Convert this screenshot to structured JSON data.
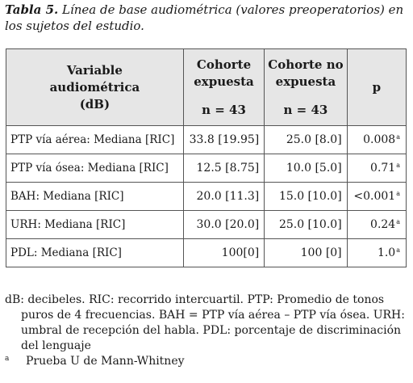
{
  "caption": {
    "label": "Tabla 5.",
    "text": "Línea de base audiométrica (valores preoperatorios) en los sujetos del estudio."
  },
  "table": {
    "headers": {
      "variable_line1": "Variable",
      "variable_line2": "audiométrica",
      "variable_line3": "(dB)",
      "cohort1_line1": "Cohorte",
      "cohort1_line2": "expuesta",
      "cohort1_n": "n = 43",
      "cohort2_line1": "Cohorte no",
      "cohort2_line2": "expuesta",
      "cohort2_n": "n = 43",
      "p": "p"
    },
    "rows": [
      {
        "variable": "PTP vía aérea: Mediana [RIC]",
        "exposed": "33.8 [19.95]",
        "unexposed": "25.0 [8.0]",
        "p": "0.008",
        "p_mark": "a"
      },
      {
        "variable": "PTP vía ósea: Mediana [RIC]",
        "exposed": "12.5 [8.75]",
        "unexposed": "10.0 [5.0]",
        "p": "0.71",
        "p_mark": "a"
      },
      {
        "variable": "BAH: Mediana [RIC]",
        "exposed": "20.0 [11.3]",
        "unexposed": "15.0 [10.0]",
        "p": "<0.001",
        "p_mark": "a"
      },
      {
        "variable": "URH: Mediana [RIC]",
        "exposed": "30.0 [20.0]",
        "unexposed": "25.0 [10.0]",
        "p": "0.24",
        "p_mark": "a"
      },
      {
        "variable": "PDL: Mediana [RIC]",
        "exposed": "100[0]",
        "unexposed": "100 [0]",
        "p": "1.0",
        "p_mark": "a"
      }
    ]
  },
  "notes": {
    "abbreviations": "dB: decibeles. RIC: recorrido intercuartil. PTP: Promedio de tonos puros de 4 frecuencias. BAH = PTP vía aérea – PTP vía ósea. URH: umbral de recepción del habla. PDL: porcentaje de discriminación del lenguaje",
    "footnote_mark": "a",
    "footnote_text": "Prueba U de Mann-Whitney"
  }
}
